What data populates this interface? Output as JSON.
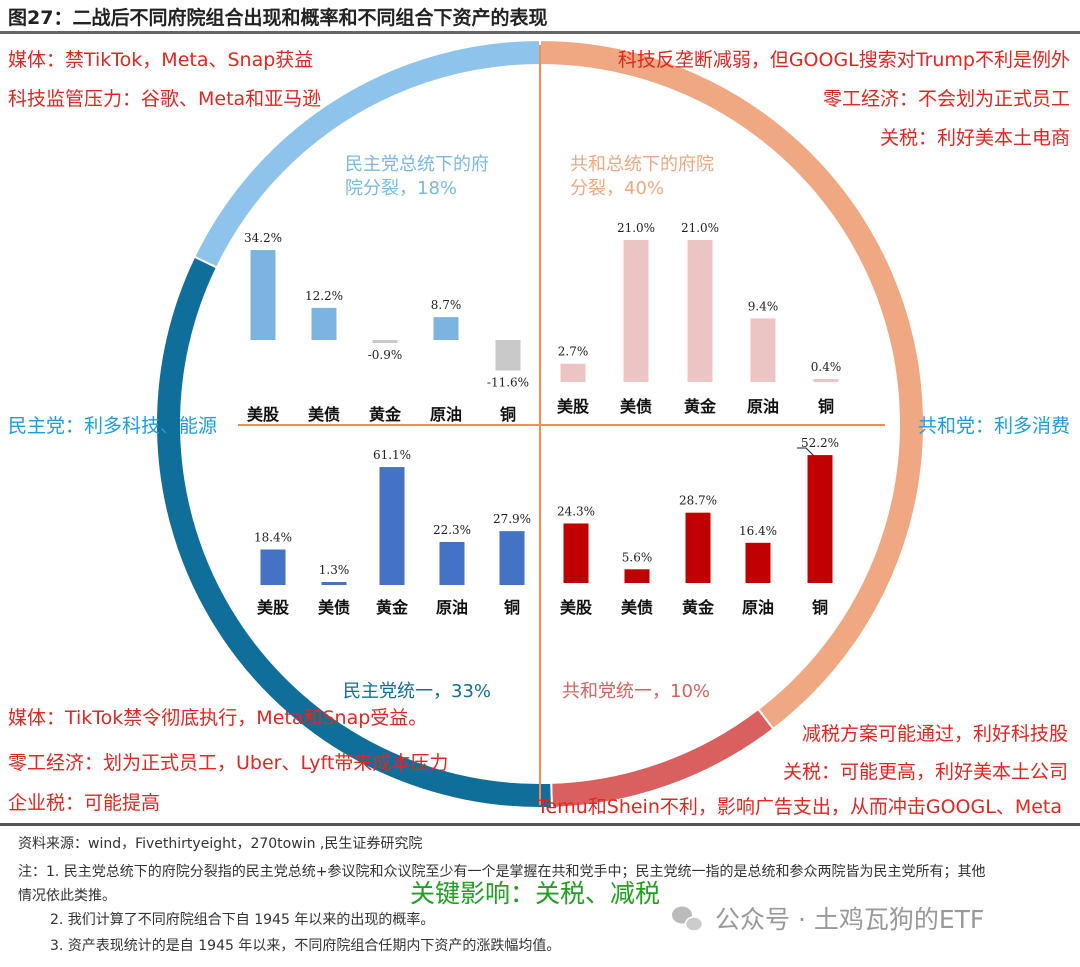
{
  "title": "图27：二战后不同府院组合出现和概率和不同组合下资产的表现",
  "annotations": {
    "top_left": [
      "媒体：禁TikTok，Meta、Snap获益",
      "科技监管压力：谷歌、Meta和亚马逊"
    ],
    "top_right": [
      "科技反垄断减弱，但GOOGL搜索对Trump不利是例外",
      "零工经济：不会划为正式员工",
      "关税：利好美本土电商"
    ],
    "left_party": "民主党：利多科技、能源",
    "right_party": "共和党：利多消费",
    "bottom_left": [
      "媒体：TikTok禁令彻底执行，Meta和Snap受益。",
      "零工经济：划为正式员工，Uber、Lyft带来成本压力",
      "企业税：可能提高"
    ],
    "bottom_right": [
      "减税方案可能通过，利好科技股",
      "关税：可能更高，利好美本土公司",
      "Temu和Shein不利，影响广告支出，从而冲击GOOGL、Meta"
    ]
  },
  "quadrant_titles": {
    "top_left": [
      "民主党总统下的府",
      "院分裂，18%"
    ],
    "top_right": [
      "共和总统下的府院",
      "分裂，40%"
    ],
    "bottom_left": "民主党统一，33%",
    "bottom_right": "共和党统一，10%"
  },
  "ring": {
    "segments": [
      {
        "name": "共和总统下的府院分裂",
        "percent": 40,
        "color": "#f0a882"
      },
      {
        "name": "共和党统一",
        "percent": 10,
        "color": "#d9605f"
      },
      {
        "name": "民主党统一",
        "percent": 33,
        "color": "#0f6e9a"
      },
      {
        "name": "民主党总统下的府院分裂",
        "percent": 18,
        "color": "#8ec4ec"
      }
    ]
  },
  "chart_data": [
    {
      "type": "bar",
      "quadrant": "top_left",
      "title": "民主党总统下的府院分裂，18%",
      "categories": [
        "美股",
        "美债",
        "黄金",
        "原油",
        "铜"
      ],
      "values": [
        34.2,
        12.2,
        -0.9,
        8.7,
        -11.6
      ],
      "labels": [
        "34.2%",
        "12.2%",
        "-0.9%",
        "8.7%",
        "-11.6%"
      ],
      "color": "#7cb4e0",
      "negative_color": "#c9c9c9"
    },
    {
      "type": "bar",
      "quadrant": "top_right",
      "title": "共和总统下的府院分裂，40%",
      "categories": [
        "美股",
        "美债",
        "黄金",
        "原油",
        "铜"
      ],
      "values": [
        2.7,
        21.0,
        21.0,
        9.4,
        0.4
      ],
      "labels": [
        "2.7%",
        "21.0%",
        "21.0%",
        "9.4%",
        "0.4%"
      ],
      "color": "#ecc4c4",
      "negative_color": "#c9c9c9"
    },
    {
      "type": "bar",
      "quadrant": "bottom_left",
      "title": "民主党统一，33%",
      "categories": [
        "美股",
        "美债",
        "黄金",
        "原油",
        "铜"
      ],
      "values": [
        18.4,
        1.3,
        61.1,
        22.3,
        27.9
      ],
      "labels": [
        "18.4%",
        "1.3%",
        "61.1%",
        "22.3%",
        "27.9%"
      ],
      "color": "#4472c4",
      "negative_color": "#c9c9c9"
    },
    {
      "type": "bar",
      "quadrant": "bottom_right",
      "title": "共和党统一，10%",
      "categories": [
        "美股",
        "美债",
        "黄金",
        "原油",
        "铜"
      ],
      "values": [
        24.3,
        5.6,
        28.7,
        16.4,
        52.2
      ],
      "labels": [
        "24.3%",
        "5.6%",
        "28.7%",
        "16.4%",
        "52.2%"
      ],
      "color": "#c00000",
      "negative_color": "#c9c9c9"
    }
  ],
  "footer": {
    "source": "资料来源：wind，Fivethirtyeight，270towin ,民生证券研究院",
    "note1a": "注：1. 民主党总统下的府院分裂指的民主党总统+参议院和众议院至少有一个是掌握在共和党手中；民主党统一指的是总统和参众两院皆为民主党所有；其他",
    "note1b": "情况依此类推。",
    "note2": "2. 我们计算了不同府院组合下自 1945 年以来的出现的概率。",
    "note3": "3. 资产表现统计的是自 1945 年以来，不同府院组合任期内下资产的涨跌幅均值。",
    "key_impact": "关键影响：关税、减税",
    "watermark": "公众号 · 土鸡瓦狗的ETF"
  }
}
